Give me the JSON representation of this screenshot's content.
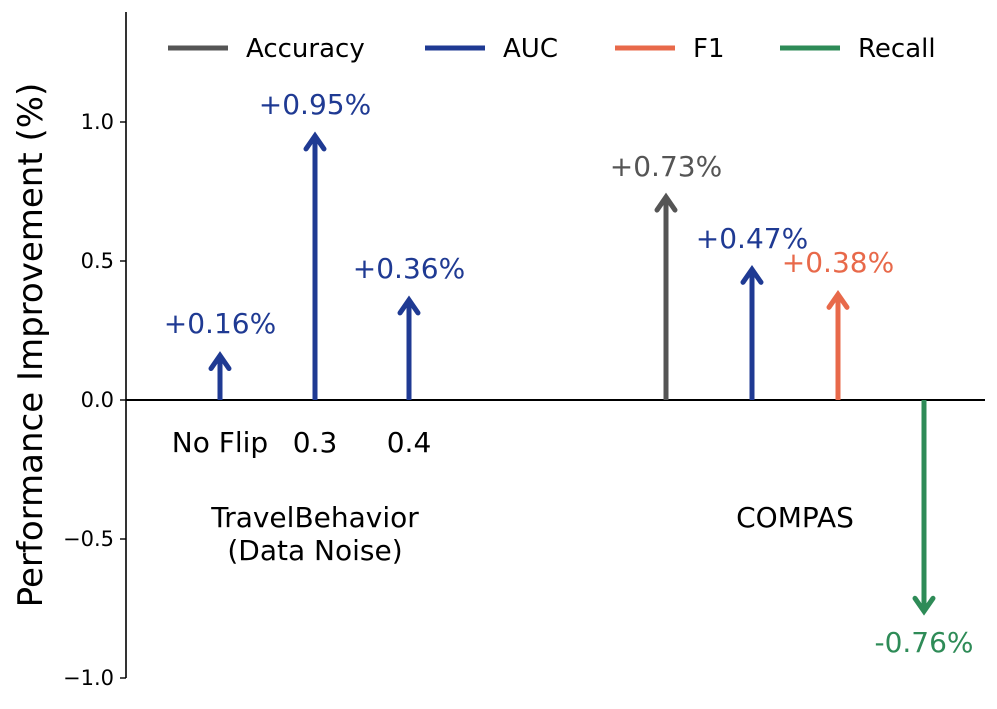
{
  "chart_data": {
    "type": "bar",
    "ylabel": "Performance Improvement (%)",
    "ylim": [
      -1.0,
      1.4
    ],
    "yticks": [
      -1.0,
      -0.5,
      0.0,
      0.5,
      1.0
    ],
    "ytick_labels": [
      "−1.0",
      "−0.5",
      "0.0",
      "0.5",
      "1.0"
    ],
    "grid": false,
    "legend_position": "top",
    "legend": [
      {
        "label": "Accuracy",
        "color": "#555555"
      },
      {
        "label": "AUC",
        "color": "#1f3a93"
      },
      {
        "label": "F1",
        "color": "#e8694a"
      },
      {
        "label": "Recall",
        "color": "#2e8b57"
      }
    ],
    "groups": [
      {
        "label_line1": "TravelBehavior",
        "label_line2": "(Data Noise)"
      },
      {
        "label_line1": "COMPAS",
        "label_line2": ""
      }
    ],
    "arrows": [
      {
        "group": 0,
        "category": "No Flip",
        "metric": "AUC",
        "value": 0.16,
        "label": "+0.16%",
        "color": "#1f3a93"
      },
      {
        "group": 0,
        "category": "0.3",
        "metric": "AUC",
        "value": 0.95,
        "label": "+0.95%",
        "color": "#1f3a93"
      },
      {
        "group": 0,
        "category": "0.4",
        "metric": "AUC",
        "value": 0.36,
        "label": "+0.36%",
        "color": "#1f3a93"
      },
      {
        "group": 1,
        "category": "",
        "metric": "Accuracy",
        "value": 0.73,
        "label": "+0.73%",
        "color": "#555555"
      },
      {
        "group": 1,
        "category": "",
        "metric": "AUC",
        "value": 0.47,
        "label": "+0.47%",
        "color": "#1f3a93"
      },
      {
        "group": 1,
        "category": "",
        "metric": "F1",
        "value": 0.38,
        "label": "+0.38%",
        "color": "#e8694a"
      },
      {
        "group": 1,
        "category": "",
        "metric": "Recall",
        "value": -0.76,
        "label": "-0.76%",
        "color": "#2e8b57"
      }
    ]
  }
}
